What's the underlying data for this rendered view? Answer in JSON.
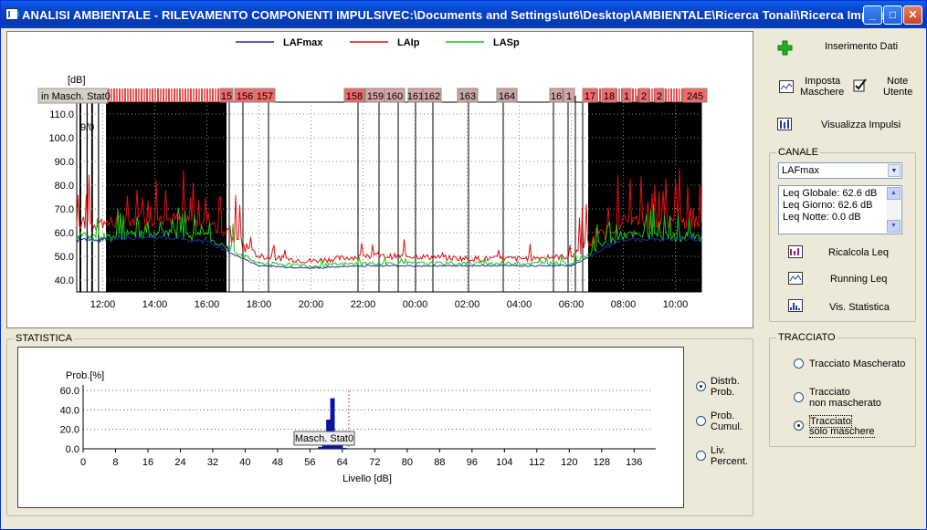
{
  "window": {
    "title": "ANALISI AMBIENTALE - RILEVAMENTO COMPONENTI IMPULSIVEC:\\Documents and Settings\\ut6\\Desktop\\AMBIENTALE\\Ricerca Tonali\\Ricerca Impulsi....",
    "minimize": "_",
    "maximize": "□",
    "close": "✕"
  },
  "main_chart": {
    "legend": [
      {
        "name": "LAFmax",
        "color": "#1f2fa0"
      },
      {
        "name": "LAIp",
        "color": "#e01010"
      },
      {
        "name": "LASp",
        "color": "#18c818"
      }
    ],
    "y_unit": "[dB]",
    "y_ticks": [
      "110.0",
      "100.0",
      "90.0",
      "80.0",
      "70.0",
      "60.0",
      "50.0",
      "40.0"
    ],
    "x_ticks": [
      "12:00",
      "14:00",
      "16:00",
      "18:00",
      "20:00",
      "22:00",
      "00:00",
      "02:00",
      "04:00",
      "06:00",
      "08:00",
      "10:00"
    ],
    "mask_label": "in Masch. Stat0",
    "partial_date": "9/0",
    "markers": [
      "15",
      "156",
      "157",
      "158",
      "159",
      "160",
      "161",
      "162",
      "163",
      "164",
      "16",
      "1",
      "17",
      "18",
      "1",
      "2",
      "2",
      "245"
    ]
  },
  "statistica": {
    "group_label": "STATISTICA",
    "ylabel": "Prob.[%]",
    "xlabel": "Livello [dB]",
    "y_ticks": [
      "60.0",
      "40.0",
      "20.0",
      "0.0"
    ],
    "x_ticks": [
      "0",
      "8",
      "16",
      "24",
      "32",
      "40",
      "48",
      "56",
      "64",
      "72",
      "80",
      "88",
      "96",
      "104",
      "112",
      "120",
      "128",
      "136"
    ],
    "tooltip": "Masch. Stat0",
    "radios": [
      {
        "label1": "Distrb.",
        "label2": "Prob.",
        "checked": true
      },
      {
        "label1": "Prob.",
        "label2": "Cumul.",
        "checked": false
      },
      {
        "label1": "Liv.",
        "label2": "Percent.",
        "checked": false
      }
    ]
  },
  "chart_data": [
    {
      "type": "line",
      "ylabel": "[dB]",
      "ylim": [
        35,
        115
      ],
      "x": [
        "12:00",
        "14:00",
        "16:00",
        "18:00",
        "20:00",
        "22:00",
        "00:00",
        "02:00",
        "04:00",
        "06:00",
        "08:00",
        "10:00"
      ],
      "series": [
        {
          "name": "LAFmax",
          "values": [
            57,
            58,
            56,
            46,
            45,
            46,
            46,
            46,
            46,
            46,
            57,
            57
          ]
        },
        {
          "name": "LAIp",
          "values": [
            64,
            66,
            65,
            50,
            48,
            50,
            50,
            49,
            49,
            50,
            65,
            64
          ]
        },
        {
          "name": "LASp",
          "values": [
            58,
            60,
            58,
            47,
            46,
            47,
            47,
            47,
            47,
            47,
            59,
            58
          ]
        }
      ]
    },
    {
      "type": "bar",
      "ylabel": "Prob.[%]",
      "xlabel": "Livello [dB]",
      "xlim": [
        0,
        140
      ],
      "ylim": [
        0,
        60
      ],
      "x": [
        58,
        59,
        60,
        61,
        62,
        63,
        64
      ],
      "values": [
        2,
        10,
        30,
        52,
        14,
        4,
        1
      ]
    }
  ],
  "sidebar": {
    "inserimento": "Inserimento Dati",
    "imposta1": "Imposta",
    "imposta2": "Maschere",
    "note1": "Note",
    "note2": "Utente",
    "visualizza": "Visualizza Impulsi",
    "canale_label": "CANALE",
    "canale_value": "LAFmax",
    "leq_lines": [
      "Leq Globale: 62.6 dB",
      "Leq Giorno: 62.6 dB",
      "Leq Notte: 0.0 dB"
    ],
    "ricalcola": "Ricalcola Leq",
    "running": "Running Leq",
    "vis_stat": "Vis. Statistica",
    "tracciato_label": "TRACCIATO",
    "tracciato": [
      {
        "label1": "Tracciato Mascherato",
        "label2": "",
        "checked": false
      },
      {
        "label1": "Tracciato",
        "label2": "non mascherato",
        "checked": false
      },
      {
        "label1": "Tracciato",
        "label2": "solo maschere",
        "checked": true
      }
    ]
  }
}
